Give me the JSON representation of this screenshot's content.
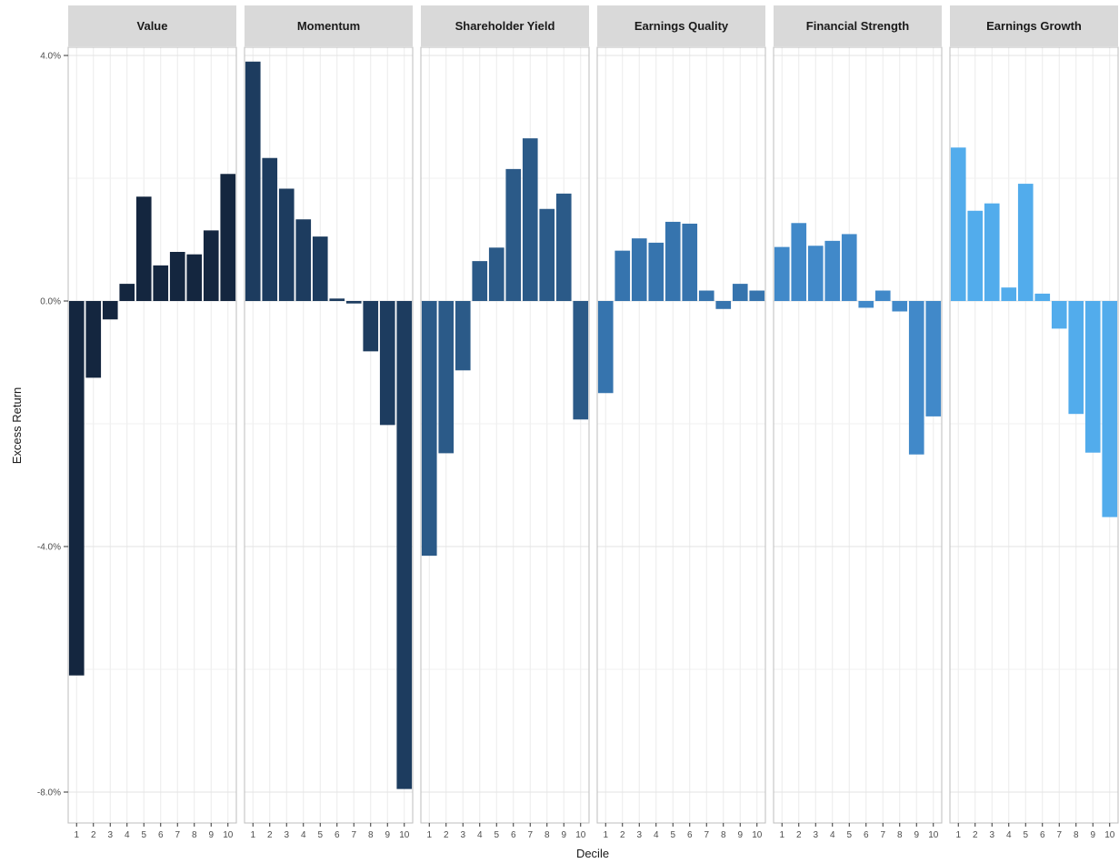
{
  "chart_data": {
    "type": "bar",
    "xlabel": "Decile",
    "ylabel": "Excess Return",
    "ylim": [
      -8.5,
      4.2
    ],
    "y_ticks": [
      4.0,
      0.0,
      -4.0,
      -8.0
    ],
    "y_tick_labels": [
      "4.0%",
      "0.0%",
      "-4.0%",
      "-8.0%"
    ],
    "grid": true,
    "legend": "none",
    "categories": [
      "1",
      "2",
      "3",
      "4",
      "5",
      "6",
      "7",
      "8",
      "9",
      "10"
    ],
    "series": [
      {
        "name": "Value",
        "color": "#14263f",
        "values": [
          -6.1,
          -1.25,
          -0.3,
          0.28,
          1.7,
          0.58,
          0.8,
          0.76,
          1.15,
          2.07
        ]
      },
      {
        "name": "Momentum",
        "color": "#1d3c5f",
        "values": [
          3.9,
          2.33,
          1.83,
          1.33,
          1.05,
          0.04,
          -0.04,
          -0.82,
          -2.02,
          -7.95
        ]
      },
      {
        "name": "Shareholder Yield",
        "color": "#2b5a88",
        "values": [
          -4.15,
          -2.48,
          -1.13,
          0.65,
          0.87,
          2.15,
          2.65,
          1.5,
          1.75,
          -1.93
        ]
      },
      {
        "name": "Earnings Quality",
        "color": "#3674ae",
        "values": [
          -1.5,
          0.82,
          1.02,
          0.95,
          1.29,
          1.26,
          0.17,
          -0.13,
          0.28,
          0.17
        ]
      },
      {
        "name": "Financial Strength",
        "color": "#4189c9",
        "values": [
          0.88,
          1.27,
          0.9,
          0.98,
          1.09,
          -0.11,
          0.17,
          -0.17,
          -2.5,
          -1.88
        ]
      },
      {
        "name": "Earnings Growth",
        "color": "#52acec",
        "values": [
          2.5,
          1.47,
          1.59,
          0.22,
          1.91,
          0.12,
          -0.45,
          -1.84,
          -2.47,
          -3.52
        ]
      }
    ]
  }
}
